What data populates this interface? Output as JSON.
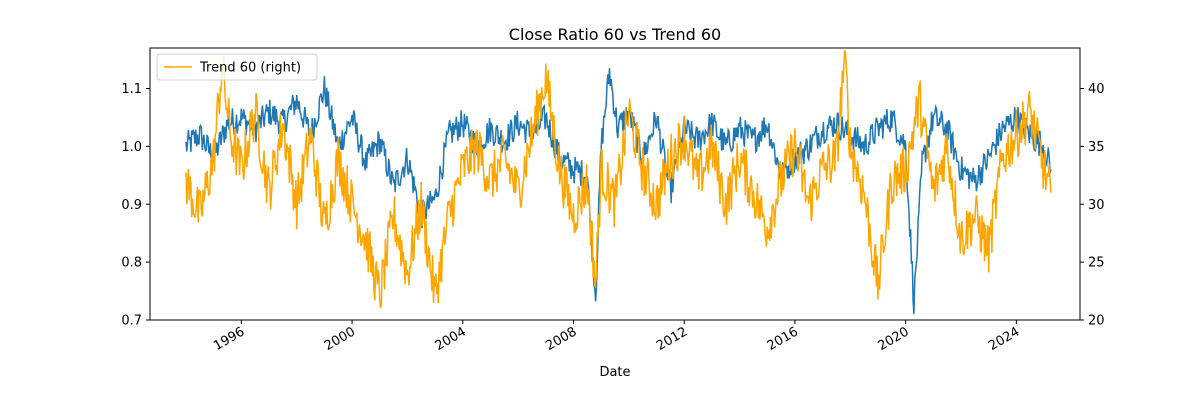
{
  "chart_data": {
    "type": "line",
    "title": "Close Ratio 60 vs Trend 60",
    "xlabel": "Date",
    "ylabel_left": "",
    "ylabel_right": "",
    "x_ticks": [
      "1996",
      "2000",
      "2004",
      "2008",
      "2012",
      "2016",
      "2020",
      "2024"
    ],
    "y_left_ticks": [
      "0.7",
      "0.8",
      "0.9",
      "1.0",
      "1.1"
    ],
    "y_right_ticks": [
      "20",
      "25",
      "30",
      "35",
      "40"
    ],
    "ylim_left": [
      0.7,
      1.17
    ],
    "ylim_right": [
      20,
      43.5
    ],
    "xlim": [
      1992.7,
      2026.3
    ],
    "grid": false,
    "legend": {
      "position": "top-left",
      "entries": [
        "Trend 60 (right)"
      ]
    },
    "colors": {
      "left_series": "#1f77b4",
      "right_series": "#ffa500"
    },
    "series": [
      {
        "axis": "left",
        "x": [
          1994.0,
          1994.5,
          1995.0,
          1995.5,
          1996.0,
          1996.5,
          1997.0,
          1997.5,
          1998.0,
          1998.5,
          1999.0,
          1999.5,
          2000.0,
          2000.5,
          2001.0,
          2001.5,
          2002.0,
          2002.5,
          2003.0,
          2003.5,
          2004.0,
          2004.5,
          2005.0,
          2005.5,
          2006.0,
          2006.5,
          2007.0,
          2007.5,
          2008.0,
          2008.5,
          2008.8,
          2009.0,
          2009.3,
          2009.6,
          2010.0,
          2010.5,
          2011.0,
          2011.5,
          2012.0,
          2012.5,
          2013.0,
          2013.5,
          2014.0,
          2014.5,
          2015.0,
          2015.5,
          2016.0,
          2016.5,
          2017.0,
          2017.5,
          2018.0,
          2018.5,
          2019.0,
          2019.5,
          2020.0,
          2020.3,
          2020.6,
          2021.0,
          2021.5,
          2022.0,
          2022.5,
          2023.0,
          2023.5,
          2024.0,
          2024.5,
          2025.0,
          2025.25
        ],
        "values": [
          1.0,
          1.02,
          0.98,
          1.04,
          1.05,
          1.03,
          1.06,
          1.04,
          1.08,
          1.02,
          1.1,
          1.0,
          1.05,
          0.97,
          1.01,
          0.93,
          0.98,
          0.88,
          0.91,
          1.02,
          1.04,
          1.0,
          1.03,
          1.01,
          1.04,
          1.02,
          1.05,
          0.98,
          0.96,
          0.95,
          0.74,
          1.0,
          1.13,
          1.03,
          1.06,
          0.98,
          1.05,
          0.92,
          1.03,
          1.01,
          1.04,
          1.0,
          1.03,
          1.01,
          1.04,
          0.95,
          0.98,
          1.0,
          1.03,
          1.04,
          1.02,
          1.0,
          1.03,
          1.05,
          1.0,
          0.73,
          0.97,
          1.05,
          1.03,
          0.96,
          0.94,
          0.98,
          1.03,
          1.05,
          1.02,
          1.0,
          0.96
        ]
      },
      {
        "name": "Trend 60 (right)",
        "axis": "right",
        "x": [
          1994.0,
          1994.5,
          1995.0,
          1995.3,
          1995.6,
          1996.0,
          1996.5,
          1997.0,
          1997.5,
          1998.0,
          1998.5,
          1999.0,
          1999.5,
          2000.0,
          2000.5,
          2001.0,
          2001.5,
          2002.0,
          2002.5,
          2003.0,
          2003.5,
          2004.0,
          2004.5,
          2005.0,
          2005.5,
          2006.0,
          2006.5,
          2007.0,
          2007.5,
          2008.0,
          2008.5,
          2008.8,
          2009.0,
          2009.5,
          2010.0,
          2010.5,
          2011.0,
          2011.5,
          2012.0,
          2012.5,
          2013.0,
          2013.5,
          2014.0,
          2014.5,
          2015.0,
          2015.5,
          2016.0,
          2016.5,
          2017.0,
          2017.5,
          2017.8,
          2018.0,
          2018.5,
          2019.0,
          2019.5,
          2020.0,
          2020.5,
          2021.0,
          2021.5,
          2022.0,
          2022.5,
          2023.0,
          2023.5,
          2024.0,
          2024.5,
          2025.0,
          2025.25
        ],
        "values": [
          32,
          29,
          34,
          42,
          36,
          33,
          38,
          31,
          37,
          30,
          36,
          28,
          34,
          30,
          27,
          22,
          29,
          24,
          30,
          22,
          29,
          33,
          35,
          32,
          34,
          31,
          36,
          41,
          33,
          29,
          32,
          23,
          33,
          30,
          38,
          33,
          30,
          34,
          36,
          32,
          35,
          30,
          34,
          31,
          28,
          32,
          35,
          30,
          33,
          34,
          43,
          35,
          31,
          23,
          32,
          33,
          39,
          31,
          35,
          27,
          29,
          26,
          34,
          36,
          38,
          33,
          31
        ]
      }
    ]
  }
}
